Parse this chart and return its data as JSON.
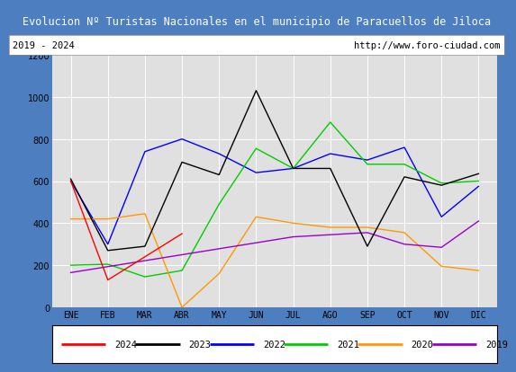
{
  "title": "Evolucion Nº Turistas Nacionales en el municipio de Paracuellos de Jiloca",
  "subtitle_left": "2019 - 2024",
  "subtitle_right": "http://www.foro-ciudad.com",
  "months": [
    "ENE",
    "FEB",
    "MAR",
    "ABR",
    "MAY",
    "JUN",
    "JUL",
    "AGO",
    "SEP",
    "OCT",
    "NOV",
    "DIC"
  ],
  "ylim": [
    0,
    1200
  ],
  "yticks": [
    0,
    200,
    400,
    600,
    800,
    1000,
    1200
  ],
  "series": {
    "2024": {
      "values": [
        600,
        130,
        null,
        350,
        null,
        null,
        null,
        null,
        null,
        null,
        null,
        null
      ],
      "color": "#ff0000",
      "zorder": 5
    },
    "2023": {
      "values": [
        610,
        270,
        290,
        690,
        630,
        1030,
        660,
        660,
        290,
        620,
        580,
        635
      ],
      "color": "#000000",
      "zorder": 4
    },
    "2022": {
      "values": [
        600,
        300,
        740,
        800,
        730,
        640,
        660,
        730,
        700,
        760,
        430,
        575
      ],
      "color": "#0000ff",
      "zorder": 3
    },
    "2021": {
      "values": [
        200,
        205,
        145,
        175,
        490,
        755,
        660,
        880,
        680,
        680,
        590,
        600
      ],
      "color": "#00cc00",
      "zorder": 3
    },
    "2020": {
      "values": [
        420,
        420,
        445,
        0,
        160,
        430,
        400,
        380,
        380,
        355,
        195,
        175
      ],
      "color": "#ff9900",
      "zorder": 3
    },
    "2019": {
      "values": [
        165,
        null,
        null,
        null,
        null,
        null,
        335,
        345,
        355,
        300,
        285,
        410
      ],
      "color": "#9900cc",
      "zorder": 3
    }
  },
  "title_bg": "#4d7ebf",
  "title_color": "#ffffff",
  "subtitle_bg": "#ffffff",
  "plot_bg": "#e0e0e0",
  "grid_color": "#ffffff",
  "border_color": "#4d7ebf",
  "legend_order": [
    "2024",
    "2023",
    "2022",
    "2021",
    "2020",
    "2019"
  ],
  "title_fontsize": 8.5,
  "subtitle_fontsize": 7.5,
  "tick_fontsize": 7,
  "legend_fontsize": 7.5
}
